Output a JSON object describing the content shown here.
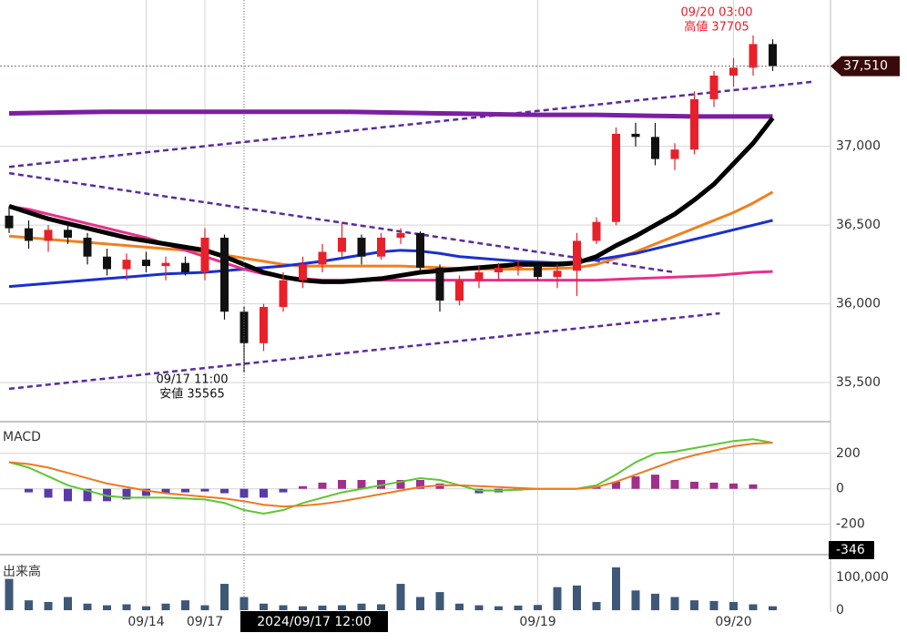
{
  "chart_data": [
    {
      "type": "candlestick",
      "open": [
        36560,
        36480,
        36400,
        36470,
        36420,
        36300,
        36220,
        36280,
        36240,
        36260,
        36200,
        36420,
        35950,
        35750,
        35980,
        36150,
        36250,
        36330,
        36420,
        36300,
        36420,
        36450,
        36230,
        36020,
        36150,
        36200,
        36230,
        36240,
        36170,
        36210,
        36400,
        36520,
        37080,
        37060,
        36920,
        36980,
        37300,
        37450,
        37500,
        37650
      ],
      "high": [
        36620,
        36530,
        36500,
        36520,
        36450,
        36350,
        36320,
        36330,
        36300,
        36300,
        36480,
        36440,
        35980,
        36000,
        36200,
        36300,
        36380,
        36520,
        36440,
        36450,
        36480,
        36460,
        36250,
        36180,
        36240,
        36260,
        36280,
        36260,
        36250,
        36450,
        36550,
        37120,
        37150,
        37150,
        37020,
        37350,
        37480,
        37560,
        37705,
        37680
      ],
      "low": [
        36450,
        36350,
        36330,
        36380,
        36250,
        36180,
        36150,
        36200,
        36150,
        36180,
        36150,
        35900,
        35565,
        35700,
        35950,
        36100,
        36200,
        36300,
        36250,
        36280,
        36380,
        36200,
        35950,
        35990,
        36100,
        36150,
        36180,
        36150,
        36100,
        36050,
        36380,
        36500,
        37000,
        36880,
        36850,
        36950,
        37250,
        37380,
        37450,
        37480
      ],
      "close": [
        36480,
        36400,
        36470,
        36420,
        36300,
        36220,
        36280,
        36240,
        36260,
        36200,
        36420,
        35950,
        35750,
        35980,
        36150,
        36250,
        36330,
        36420,
        36300,
        36420,
        36450,
        36230,
        36020,
        36150,
        36200,
        36230,
        36240,
        36170,
        36210,
        36400,
        36520,
        37080,
        37060,
        36920,
        36980,
        37300,
        37450,
        37500,
        37650,
        37510
      ],
      "up_color": "#e8202a",
      "down_color": "#111111",
      "ylim": [
        35257,
        37930
      ],
      "yticks": [
        {
          "value": 35500,
          "label": "35,500"
        },
        {
          "value": 36000,
          "label": "36,000"
        },
        {
          "value": 36500,
          "label": "36,500"
        },
        {
          "value": 37000,
          "label": "37,000"
        }
      ],
      "last": {
        "value": 37510,
        "label": "37,510"
      },
      "lines": [
        {
          "color": "#7b1fa2",
          "width": 5,
          "values": [
            37210,
            37212,
            37214,
            37216,
            37218,
            37220,
            37220,
            37220,
            37220,
            37220,
            37220,
            37220,
            37220,
            37220,
            37220,
            37220,
            37220,
            37220,
            37218,
            37216,
            37214,
            37212,
            37210,
            37208,
            37206,
            37204,
            37202,
            37200,
            37200,
            37200,
            37200,
            37198,
            37196,
            37194,
            37192,
            37190,
            37190,
            37190,
            37190,
            37190
          ]
        },
        {
          "color": "#f08020",
          "width": 3,
          "values": [
            36430,
            36420,
            36410,
            36400,
            36390,
            36380,
            36370,
            36360,
            36350,
            36340,
            36330,
            36310,
            36290,
            36270,
            36250,
            36240,
            36240,
            36240,
            36240,
            36240,
            36240,
            36235,
            36230,
            36225,
            36220,
            36220,
            36220,
            36220,
            36225,
            36230,
            36250,
            36290,
            36330,
            36380,
            36430,
            36480,
            36530,
            36580,
            36640,
            36710
          ]
        },
        {
          "color": "#1a2fd0",
          "width": 3,
          "values": [
            36110,
            36120,
            36130,
            36140,
            36150,
            36160,
            36170,
            36180,
            36190,
            36195,
            36200,
            36210,
            36220,
            36230,
            36240,
            36255,
            36270,
            36290,
            36310,
            36330,
            36340,
            36335,
            36320,
            36300,
            36290,
            36280,
            36270,
            36265,
            36260,
            36265,
            36280,
            36300,
            36320,
            36350,
            36380,
            36410,
            36440,
            36470,
            36500,
            36530
          ]
        },
        {
          "color": "#e8308a",
          "width": 3,
          "values": [
            36620,
            36600,
            36570,
            36540,
            36510,
            36480,
            36450,
            36420,
            36380,
            36340,
            36300,
            36260,
            36220,
            36190,
            36170,
            36160,
            36150,
            36150,
            36150,
            36150,
            36150,
            36150,
            36150,
            36150,
            36150,
            36150,
            36150,
            36150,
            36150,
            36150,
            36150,
            36155,
            36160,
            36165,
            36170,
            36175,
            36180,
            36190,
            36200,
            36205
          ]
        },
        {
          "color": "#000000",
          "width": 5,
          "values": [
            36620,
            36580,
            36540,
            36510,
            36480,
            36450,
            36420,
            36400,
            36380,
            36360,
            36340,
            36300,
            36250,
            36200,
            36170,
            36150,
            36140,
            36140,
            36150,
            36160,
            36180,
            36200,
            36210,
            36220,
            36230,
            36240,
            36250,
            36250,
            36250,
            36260,
            36300,
            36370,
            36430,
            36500,
            36570,
            36660,
            36760,
            36890,
            37020,
            37180
          ]
        }
      ],
      "trendlines": [
        {
          "color": "#5b2a9e",
          "x": [
            0,
            41
          ],
          "values": [
            36870,
            37410
          ]
        },
        {
          "color": "#5b2a9e",
          "x": [
            0,
            34
          ],
          "values": [
            36830,
            36200
          ]
        },
        {
          "color": "#5b2a9e",
          "x": [
            0,
            36.3
          ],
          "values": [
            35460,
            35940
          ]
        }
      ],
      "annotations": [
        {
          "at": "high",
          "color": "#e8202a",
          "lines": [
            "09/20 03:00",
            "高値 37705"
          ]
        },
        {
          "at": "low",
          "color": "#111111",
          "lines": [
            "09/17 11:00",
            "安値 35565"
          ]
        }
      ]
    },
    {
      "type": "macd",
      "title": "MACD",
      "ylim": [
        -346,
        343
      ],
      "yticks": [
        -200,
        0,
        200
      ],
      "series": [
        {
          "color": "#5cc832",
          "values": [
            150,
            120,
            70,
            20,
            -10,
            -40,
            -50,
            -50,
            -50,
            -55,
            -60,
            -80,
            -120,
            -140,
            -120,
            -80,
            -50,
            -20,
            0,
            20,
            40,
            60,
            50,
            20,
            -10,
            -10,
            -5,
            0,
            0,
            0,
            20,
            80,
            150,
            200,
            210,
            230,
            250,
            270,
            280,
            260
          ]
        },
        {
          "color": "#f07820",
          "values": [
            150,
            140,
            120,
            90,
            60,
            30,
            10,
            -10,
            -25,
            -35,
            -45,
            -55,
            -70,
            -90,
            -100,
            -95,
            -85,
            -70,
            -50,
            -30,
            -10,
            10,
            20,
            20,
            15,
            10,
            5,
            0,
            0,
            0,
            10,
            40,
            80,
            120,
            160,
            190,
            215,
            240,
            255,
            260
          ]
        }
      ],
      "histogram": {
        "pos_color": "#a0308a",
        "neg_color": "#5a3aa8",
        "values": [
          0,
          -20,
          -50,
          -70,
          -70,
          -70,
          -60,
          -40,
          -25,
          -20,
          -15,
          -25,
          -50,
          -50,
          -20,
          15,
          35,
          50,
          50,
          50,
          50,
          50,
          30,
          0,
          -25,
          -20,
          -10,
          0,
          0,
          0,
          10,
          40,
          70,
          80,
          50,
          40,
          35,
          30,
          25,
          0
        ]
      }
    },
    {
      "type": "bar",
      "title": "出来高",
      "color": "#3f5878",
      "ylim": [
        0,
        152000
      ],
      "yticks": [
        0,
        {
          "value": 100000,
          "label": "100,000"
        }
      ],
      "values": [
        95000,
        30000,
        25000,
        40000,
        20000,
        15000,
        18000,
        12000,
        20000,
        30000,
        15000,
        80000,
        40000,
        20000,
        15000,
        12000,
        14000,
        15000,
        20000,
        18000,
        80000,
        40000,
        55000,
        20000,
        15000,
        12000,
        14000,
        16000,
        70000,
        75000,
        25000,
        130000,
        60000,
        50000,
        40000,
        30000,
        28000,
        25000,
        18000,
        12000
      ],
      "categories": [
        null,
        null,
        null,
        null,
        null,
        null,
        null,
        "09/14",
        null,
        null,
        "09/17",
        null,
        null,
        null,
        null,
        null,
        null,
        null,
        null,
        null,
        null,
        null,
        null,
        null,
        null,
        null,
        null,
        "09/19",
        null,
        null,
        null,
        null,
        null,
        null,
        null,
        null,
        null,
        "09/20",
        null,
        null
      ],
      "crosshair": {
        "category": 12,
        "label": "2024/09/17 12:00"
      }
    }
  ]
}
